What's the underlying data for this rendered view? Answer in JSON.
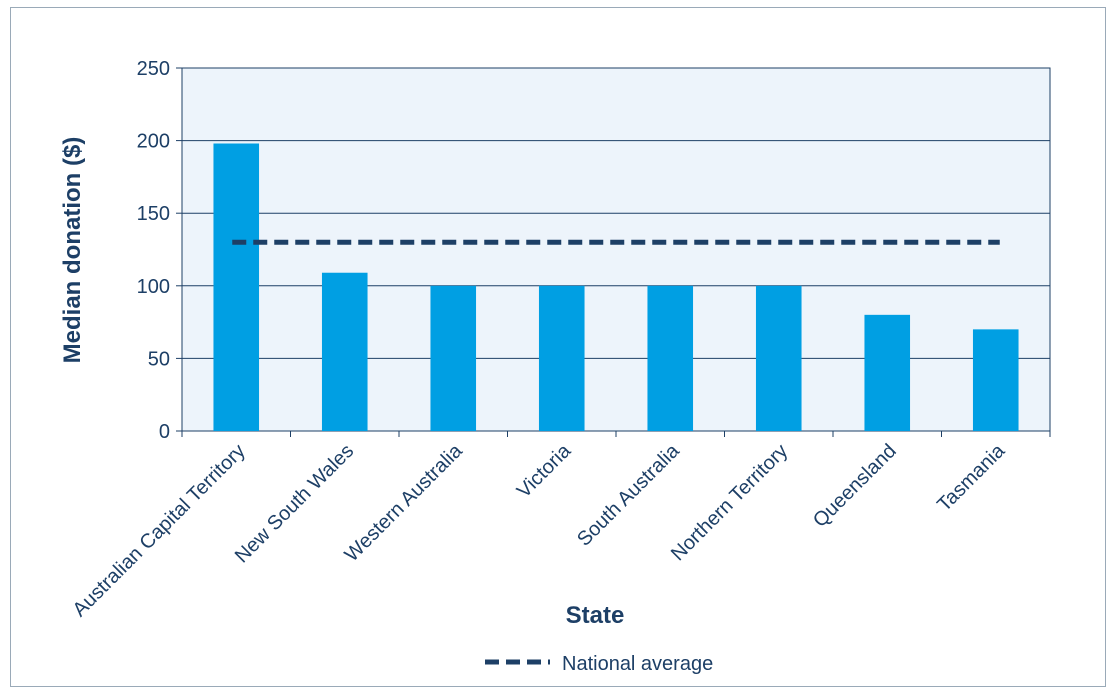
{
  "chart_data": {
    "type": "bar",
    "categories": [
      "Australian Capital Territory",
      "New South Wales",
      "Western Australia",
      "Victoria",
      "South Australia",
      "Northern Territory",
      "Queensland",
      "Tasmania"
    ],
    "values": [
      198,
      109,
      100,
      100,
      100,
      100,
      80,
      70
    ],
    "reference_line": {
      "name": "National average",
      "value": 130,
      "style": "dashed"
    },
    "title": "",
    "xlabel": "State",
    "ylabel": "Median donation ($)",
    "ylim": [
      0,
      250
    ],
    "yticks": [
      0,
      50,
      100,
      150,
      200,
      250
    ],
    "grid": true,
    "legend_position": "bottom",
    "colors": {
      "bar": "#009fe3",
      "average_line": "#1d3f66",
      "plot_background": "#edf4fb",
      "text": "#1d3f66"
    }
  }
}
